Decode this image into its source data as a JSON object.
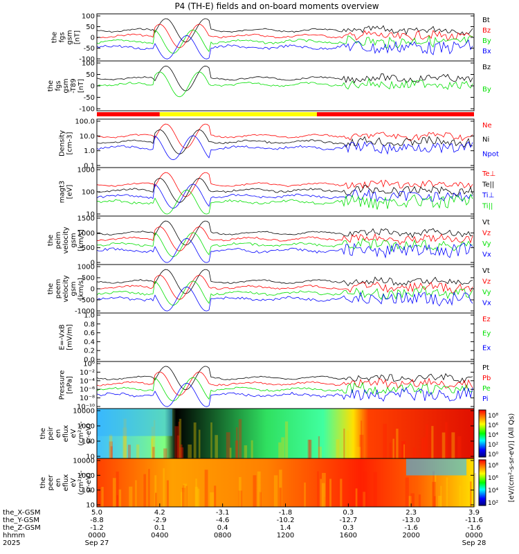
{
  "title": "P4 (TH-E) fields and on-board moments overview",
  "year": "2025",
  "colors": {
    "black": "#000000",
    "red": "#ff0000",
    "green": "#00e000",
    "blue": "#0000ff",
    "yellow": "#ffff00"
  },
  "panels": [
    {
      "id": "fgs-gsm",
      "ylabel": [
        "the",
        "fgs",
        "gsm",
        "[nT]"
      ],
      "ticks": [
        "100",
        "50",
        "0",
        "-50",
        "-100"
      ],
      "ymin": -100,
      "ymax": 100,
      "legend": [
        {
          "t": "Bt",
          "c": "black"
        },
        {
          "t": "Bz",
          "c": "red"
        },
        {
          "t": "By",
          "c": "green"
        },
        {
          "t": "Bx",
          "c": "blue"
        }
      ]
    },
    {
      "id": "fgs-gsm-dif",
      "ylabel": [
        "the",
        "fgs",
        "gsm",
        "-T89",
        "[nT]"
      ],
      "ticks": [
        "100",
        "50",
        "0",
        "-50",
        "-100"
      ],
      "ymin": -120,
      "ymax": 120,
      "legend": [
        {
          "t": "Bz",
          "c": "black"
        },
        {
          "t": "By",
          "c": "green"
        }
      ]
    },
    {
      "id": "density",
      "ylabel": [
        "Density",
        "[cm-3]"
      ],
      "ticks": [
        "100.0",
        "10.0",
        "1.0",
        "0.1"
      ],
      "log": true,
      "legend": [
        {
          "t": "Ne",
          "c": "red"
        },
        {
          "t": "Ni",
          "c": "black"
        },
        {
          "t": "Npot",
          "c": "blue"
        }
      ]
    },
    {
      "id": "temperature",
      "ylabel": [
        "magt3",
        "[eV]"
      ],
      "ticks": [
        "1000",
        "100",
        "10"
      ],
      "log": true,
      "legend": [
        {
          "t": "Te⊥",
          "c": "red"
        },
        {
          "t": "Te||",
          "c": "black"
        },
        {
          "t": "Ti⊥",
          "c": "blue"
        },
        {
          "t": "Ti||",
          "c": "green"
        }
      ]
    },
    {
      "id": "peim-velocity",
      "ylabel": [
        "the",
        "peim",
        "velocity",
        "gsm",
        "[km/s]"
      ],
      "ticks": [
        "1500",
        "1000",
        "500",
        "0"
      ],
      "legend": [
        {
          "t": "Vt",
          "c": "black"
        },
        {
          "t": "Vz",
          "c": "red"
        },
        {
          "t": "Vy",
          "c": "green"
        },
        {
          "t": "Vx",
          "c": "blue"
        }
      ]
    },
    {
      "id": "peem-velocity",
      "ylabel": [
        "the",
        "peem",
        "velocity",
        "gsm",
        "[km/s]"
      ],
      "ticks": [
        "1000",
        "500",
        "0",
        "-500",
        "-1000"
      ],
      "legend": [
        {
          "t": "Vt",
          "c": "black"
        },
        {
          "t": "Vz",
          "c": "red"
        },
        {
          "t": "Vy",
          "c": "green"
        },
        {
          "t": "Vx",
          "c": "blue"
        }
      ]
    },
    {
      "id": "efield",
      "ylabel": [
        "E=-VxB",
        "[mV/m]"
      ],
      "ticks": [
        "1.0",
        "0.8",
        "0.6",
        "0.4",
        "0.2",
        "0.0"
      ],
      "legend": [
        {
          "t": "Ez",
          "c": "red"
        },
        {
          "t": "Ey",
          "c": "green"
        },
        {
          "t": "Ex",
          "c": "blue"
        }
      ]
    },
    {
      "id": "pressure",
      "ylabel": [
        "Pressure",
        "[nPa]"
      ],
      "ticks": [
        "10⁰",
        "10⁻²",
        "10⁻⁴",
        "10⁻⁶",
        "10⁻⁸",
        "10⁻¹⁰"
      ],
      "log": true,
      "legend": [
        {
          "t": "Pt",
          "c": "black"
        },
        {
          "t": "Pb",
          "c": "red"
        },
        {
          "t": "Pe",
          "c": "green"
        },
        {
          "t": "Pi",
          "c": "blue"
        }
      ]
    },
    {
      "id": "ion-spec",
      "ylabel": [
        "the",
        "peir",
        "en",
        "eflux",
        "eV",
        "(cm²-s-",
        "sr-eV)"
      ],
      "ticks": [
        "10000",
        "1000",
        "100",
        "10"
      ],
      "spectrogram": true,
      "cbar_ticks": [
        "10⁸",
        "10⁶",
        "10⁴",
        "10²",
        "10⁰"
      ]
    },
    {
      "id": "electron-spec",
      "ylabel": [
        "the",
        "peer",
        "en",
        "eflux",
        "eV",
        "(cm²-s-",
        "sr-eV)"
      ],
      "ticks": [
        "10000",
        "1000",
        "100",
        "10"
      ],
      "spectrogram": true,
      "cbar_ticks": [
        "10⁸",
        "10⁶",
        "10⁴",
        "10²"
      ]
    }
  ],
  "cbar_label": "[eV/(cm²-s-sr-eV)] (All Qs)",
  "xaxis": {
    "row_labels": [
      "the_X-GSM",
      "the_Y-GSM",
      "the_Z-GSM",
      "hhmm",
      "2025"
    ],
    "columns": [
      {
        "x": "5.0",
        "y": "-8.8",
        "z": "-1.2",
        "t": "0000",
        "d": "Sep 27"
      },
      {
        "x": "4.2",
        "y": "-2.9",
        "z": "0.1",
        "t": "0400",
        "d": ""
      },
      {
        "x": "-3.1",
        "y": "-4.6",
        "z": "0.4",
        "t": "0800",
        "d": ""
      },
      {
        "x": "-1.8",
        "y": "-10.2",
        "z": "1.4",
        "t": "1200",
        "d": ""
      },
      {
        "x": "0.3",
        "y": "-12.7",
        "z": "0.3",
        "t": "1600",
        "d": ""
      },
      {
        "x": "2.3",
        "y": "-13.0",
        "z": "-1.6",
        "t": "2000",
        "d": ""
      },
      {
        "x": "3.9",
        "y": "-11.6",
        "z": "-1.6",
        "t": "0000",
        "d": "Sep 28"
      }
    ]
  },
  "chart_data": {
    "type": "line",
    "x": [
      "0000",
      "0400",
      "0800",
      "1200",
      "1600",
      "2000",
      "0000"
    ],
    "xlabel": "hhmm",
    "mode_bar": [
      {
        "from": "0000",
        "to": "0400",
        "color": "red"
      },
      {
        "from": "0400",
        "to": "1400",
        "color": "yellow"
      },
      {
        "from": "1400",
        "to": "0000",
        "color": "red"
      }
    ]
  }
}
